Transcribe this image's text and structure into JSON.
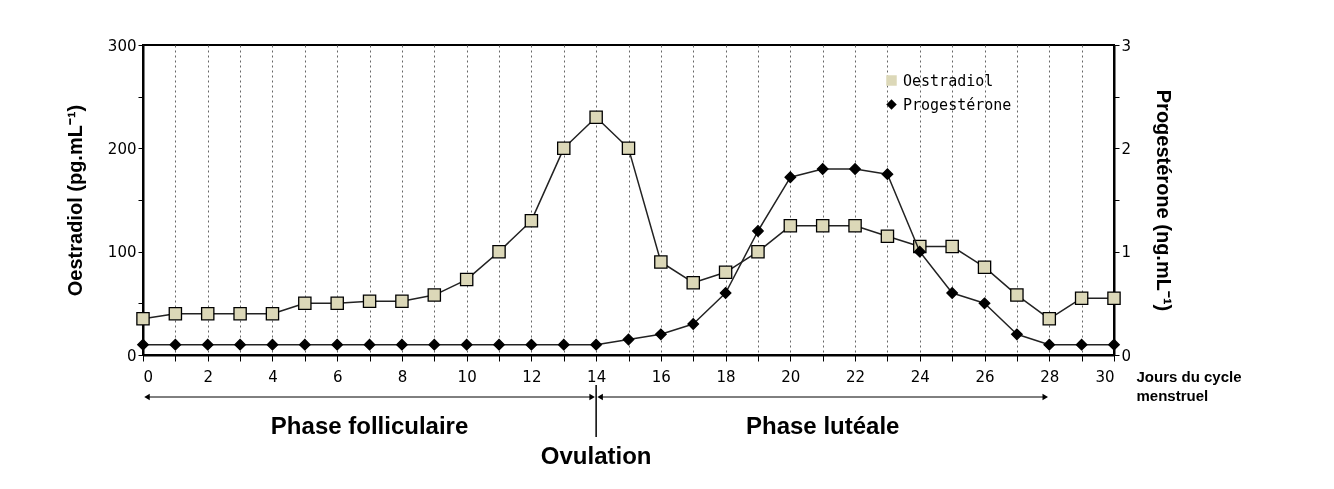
{
  "chart_data": {
    "type": "line",
    "xlabel": "Jours du cycle menstruel",
    "ylabel": "Oestradiol (pg.mL⁻¹)",
    "y2label": "Progestérone (ng.mL⁻¹)",
    "x": [
      0,
      1,
      2,
      3,
      4,
      5,
      6,
      7,
      8,
      9,
      10,
      11,
      12,
      13,
      14,
      15,
      16,
      17,
      18,
      19,
      20,
      21,
      22,
      23,
      24,
      25,
      26,
      27,
      28,
      29,
      30
    ],
    "series": [
      {
        "name": "Oestradiol",
        "color": "#dcd8b8",
        "marker": "square",
        "values": [
          35,
          40,
          40,
          40,
          40,
          50,
          50,
          52,
          52,
          58,
          73,
          100,
          130,
          200,
          230,
          200,
          90,
          70,
          80,
          100,
          125,
          125,
          125,
          115,
          105,
          105,
          85,
          58,
          35,
          55,
          55
        ]
      },
      {
        "name": "Progestérone",
        "color": "#000000",
        "marker": "diamond",
        "axis": "y2",
        "values": [
          0.1,
          0.1,
          0.1,
          0.1,
          0.1,
          0.1,
          0.1,
          0.1,
          0.1,
          0.1,
          0.1,
          0.1,
          0.1,
          0.1,
          0.1,
          0.15,
          0.2,
          0.3,
          0.6,
          1.2,
          1.72,
          1.8,
          1.8,
          1.75,
          1.0,
          0.6,
          0.5,
          0.2,
          0.1,
          0.1,
          0.1
        ]
      }
    ],
    "xlim": [
      0,
      30
    ],
    "xticks": [
      0,
      {
        "value": 1,
        "label": null
      },
      2,
      {
        "value": 3,
        "label": null
      },
      4,
      {
        "value": 5,
        "label": null
      },
      6,
      {
        "value": 7,
        "label": null
      },
      8,
      {
        "value": 9,
        "label": null
      },
      10,
      {
        "value": 11,
        "label": null
      },
      12,
      {
        "value": 13,
        "label": null
      },
      14,
      {
        "value": 15,
        "label": null
      },
      16,
      {
        "value": 17,
        "label": null
      },
      18,
      {
        "value": 19,
        "label": null
      },
      20,
      {
        "value": 21,
        "label": null
      },
      22,
      {
        "value": 23,
        "label": null
      },
      24,
      {
        "value": 25,
        "label": null
      },
      26,
      {
        "value": 27,
        "label": null
      },
      28,
      {
        "value": 29,
        "label": null
      },
      30
    ],
    "ylim": [
      0,
      300
    ],
    "yticks": [
      0,
      {
        "value": 50,
        "label": null
      },
      100,
      {
        "value": 150,
        "label": null
      },
      200,
      {
        "value": 250,
        "label": null
      },
      300
    ],
    "y2lim": [
      0,
      3
    ],
    "y2ticks": [
      0,
      {
        "value": 0.5,
        "label": null
      },
      1,
      {
        "value": 1.5,
        "label": null
      },
      2,
      {
        "value": 2.5,
        "label": null
      },
      3
    ],
    "grid": "x",
    "legend": "top right",
    "line_style": "solid",
    "annotations": [
      "Phase folliculaire",
      "Phase lutéale",
      "Ovulation"
    ]
  }
}
